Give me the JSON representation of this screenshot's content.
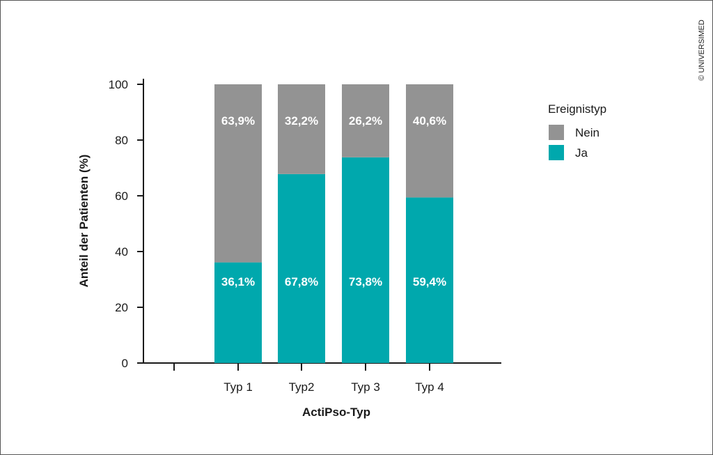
{
  "copyright": "© UNIVERSIMED",
  "colors": {
    "nein": "#939393",
    "ja": "#00a8ad",
    "axis": "#1a1a1a",
    "bar_label": "#ffffff"
  },
  "chart_data": {
    "type": "bar",
    "stacked": true,
    "categories": [
      "Typ 1",
      "Typ2",
      "Typ 3",
      "Typ 4"
    ],
    "series": [
      {
        "name": "Ja",
        "values": [
          36.1,
          67.8,
          73.8,
          59.4
        ],
        "labels": [
          "36,1%",
          "67,8%",
          "73,8%",
          "59,4%"
        ]
      },
      {
        "name": "Nein",
        "values": [
          63.9,
          32.2,
          26.2,
          40.6
        ],
        "labels": [
          "63,9%",
          "32,2%",
          "26,2%",
          "40,6%"
        ]
      }
    ],
    "xlabel": "ActiPso-Typ",
    "ylabel": "Anteil der Patienten (%)",
    "ylim": [
      0,
      100
    ],
    "yticks": [
      "0",
      "20",
      "40",
      "60",
      "80",
      "100"
    ],
    "legend": {
      "title": "Ereignistyp",
      "placement": "right",
      "entries": [
        "Nein",
        "Ja"
      ]
    },
    "grid": false
  }
}
